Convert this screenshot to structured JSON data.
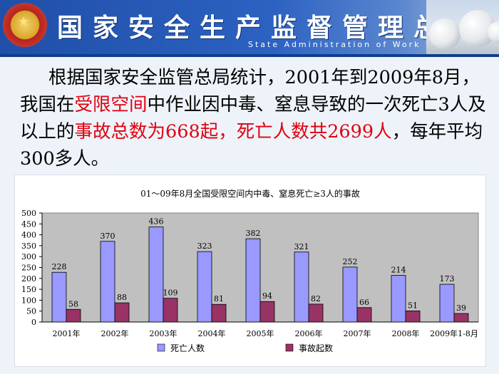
{
  "header": {
    "title": "国家安全生产监督管理总局",
    "subtitle": "State Administration of Work Safety"
  },
  "paragraph": {
    "p1": "根据国家安全监管总局统计，2001年到2009年8月，我国在",
    "p2": "受限空间",
    "p3": "中作业因中毒、窒息导致的一次死亡3人及以上的",
    "p4": "事故总数为668起，死亡人数共2699人",
    "p5": "，每年平均300多人。"
  },
  "colors": {
    "deaths": "#9999ff",
    "accidents": "#993366",
    "plot_bg": "#c0c0c0",
    "highlight": "#e0000f"
  },
  "chart_data": {
    "type": "bar",
    "title": "01～09年8月全国受限空间内中毒、窒息死亡≥3人的事故",
    "categories": [
      "2001年",
      "2002年",
      "2003年",
      "2004年",
      "2005年",
      "2006年",
      "2007年",
      "2008年",
      "2009年1-8月"
    ],
    "series": [
      {
        "name": "死亡人数",
        "values": [
          228,
          370,
          436,
          323,
          382,
          321,
          252,
          214,
          173
        ]
      },
      {
        "name": "事故起数",
        "values": [
          58,
          88,
          109,
          81,
          94,
          82,
          66,
          51,
          39
        ]
      }
    ],
    "ylim": [
      0,
      500
    ],
    "yticks": [
      0,
      50,
      100,
      150,
      200,
      250,
      300,
      350,
      400,
      450,
      500
    ],
    "legend_position": "bottom",
    "grid": false
  }
}
